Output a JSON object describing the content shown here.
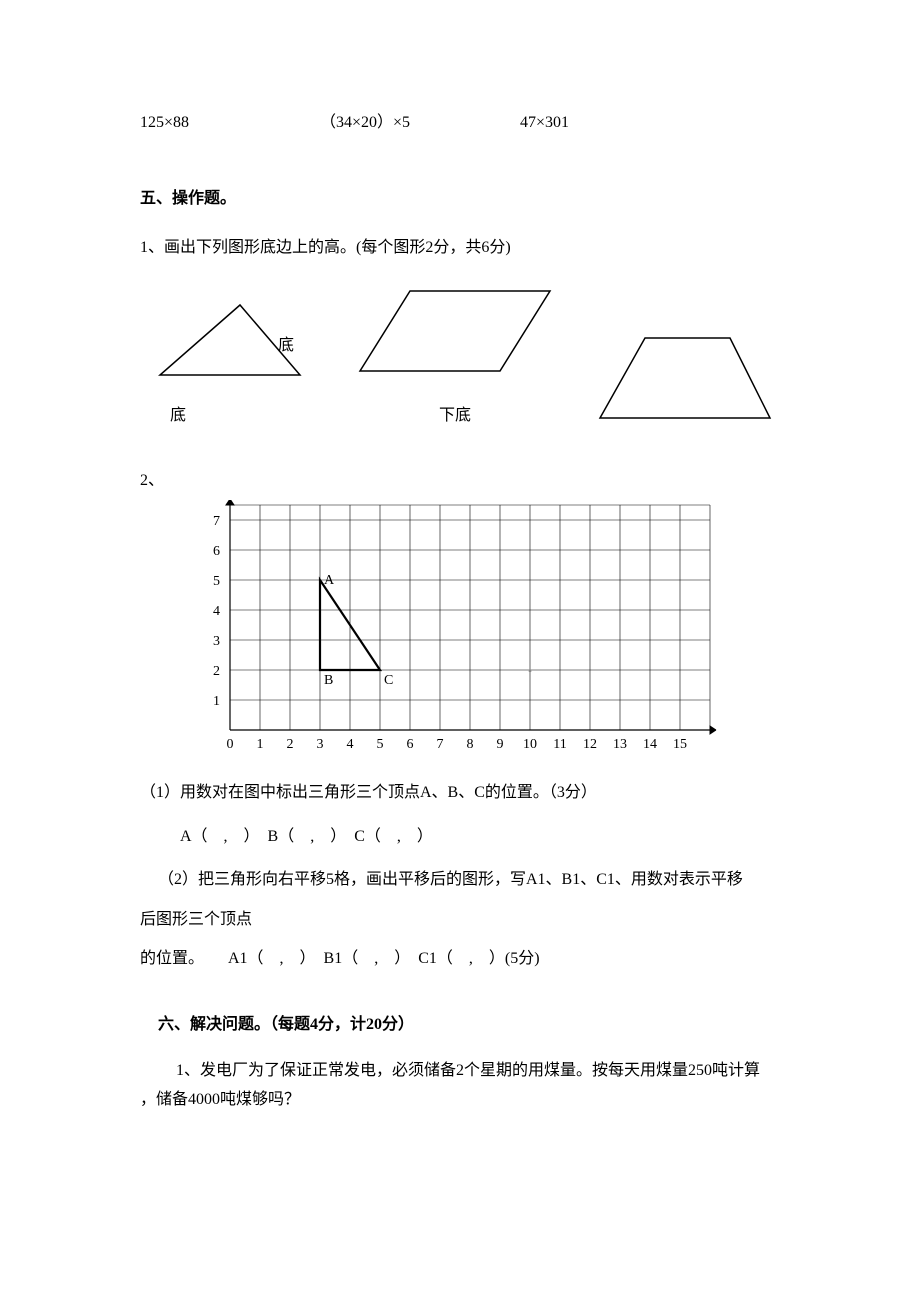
{
  "exprs": {
    "e1": "125×88",
    "e2": "（34×20）×5",
    "e3": "47×301"
  },
  "section5": {
    "title": "五、操作题。",
    "q1": "1、画出下列图形底边上的高。(每个图形2分，共6分)",
    "triangle": {
      "type": "triangle",
      "points": [
        [
          20,
          80
        ],
        [
          160,
          80
        ],
        [
          100,
          10
        ]
      ],
      "stroke": "#000000",
      "stroke_width": 1.5,
      "side_label": "底",
      "bottom_label": "底"
    },
    "parallelogram": {
      "type": "parallelogram",
      "points": [
        [
          10,
          90
        ],
        [
          150,
          90
        ],
        [
          200,
          10
        ],
        [
          60,
          10
        ]
      ],
      "stroke": "#000000",
      "stroke_width": 1.5,
      "bottom_label": "下底"
    },
    "trapezoid": {
      "type": "trapezoid",
      "points": [
        [
          10,
          90
        ],
        [
          180,
          90
        ],
        [
          140,
          10
        ],
        [
          55,
          10
        ]
      ],
      "stroke": "#000000",
      "stroke_width": 1.5
    },
    "q2_head": "2、",
    "grid": {
      "type": "grid-chart",
      "x_ticks": [
        0,
        1,
        2,
        3,
        4,
        5,
        6,
        7,
        8,
        9,
        10,
        11,
        12,
        13,
        14,
        15
      ],
      "y_ticks": [
        1,
        2,
        3,
        4,
        5,
        6,
        7
      ],
      "x_range": [
        0,
        16
      ],
      "y_range": [
        0,
        7.5
      ],
      "cell": 30,
      "grid_color": "#000000",
      "grid_width": 0.6,
      "axis_color": "#000000",
      "axis_width": 1.2,
      "tick_fontsize": 14,
      "triangle": {
        "A": [
          3,
          5
        ],
        "B": [
          3,
          2
        ],
        "C": [
          5,
          2
        ],
        "stroke": "#000000",
        "stroke_width": 2.2,
        "labels": {
          "A": "A",
          "B": "B",
          "C": "C"
        }
      },
      "center_mark": "▪"
    },
    "sub1": "（1）用数对在图中标出三角形三个顶点A、B、C的位置。（3分）",
    "sub1_ans": "A（　,　）　B（　,　）　C（　,　）",
    "sub2a": "（2）把三角形向右平移5格，画出平移后的图形，写A1、B1、C1、用数对表示平移",
    "sub2b": "后图形三个顶点",
    "sub2_ans": "的位置。　　A1（　,　）　B1（　,　）　C1（　,　）(5分)"
  },
  "section6": {
    "title": "六、解决问题。（每题4分，计20分）",
    "q1a": "1、发电厂为了保证正常发电，必须储备2个星期的用煤量。按每天用煤量250吨计算",
    "q1b": "，储备4000吨煤够吗？"
  },
  "colors": {
    "text": "#000000",
    "bg": "#ffffff"
  }
}
